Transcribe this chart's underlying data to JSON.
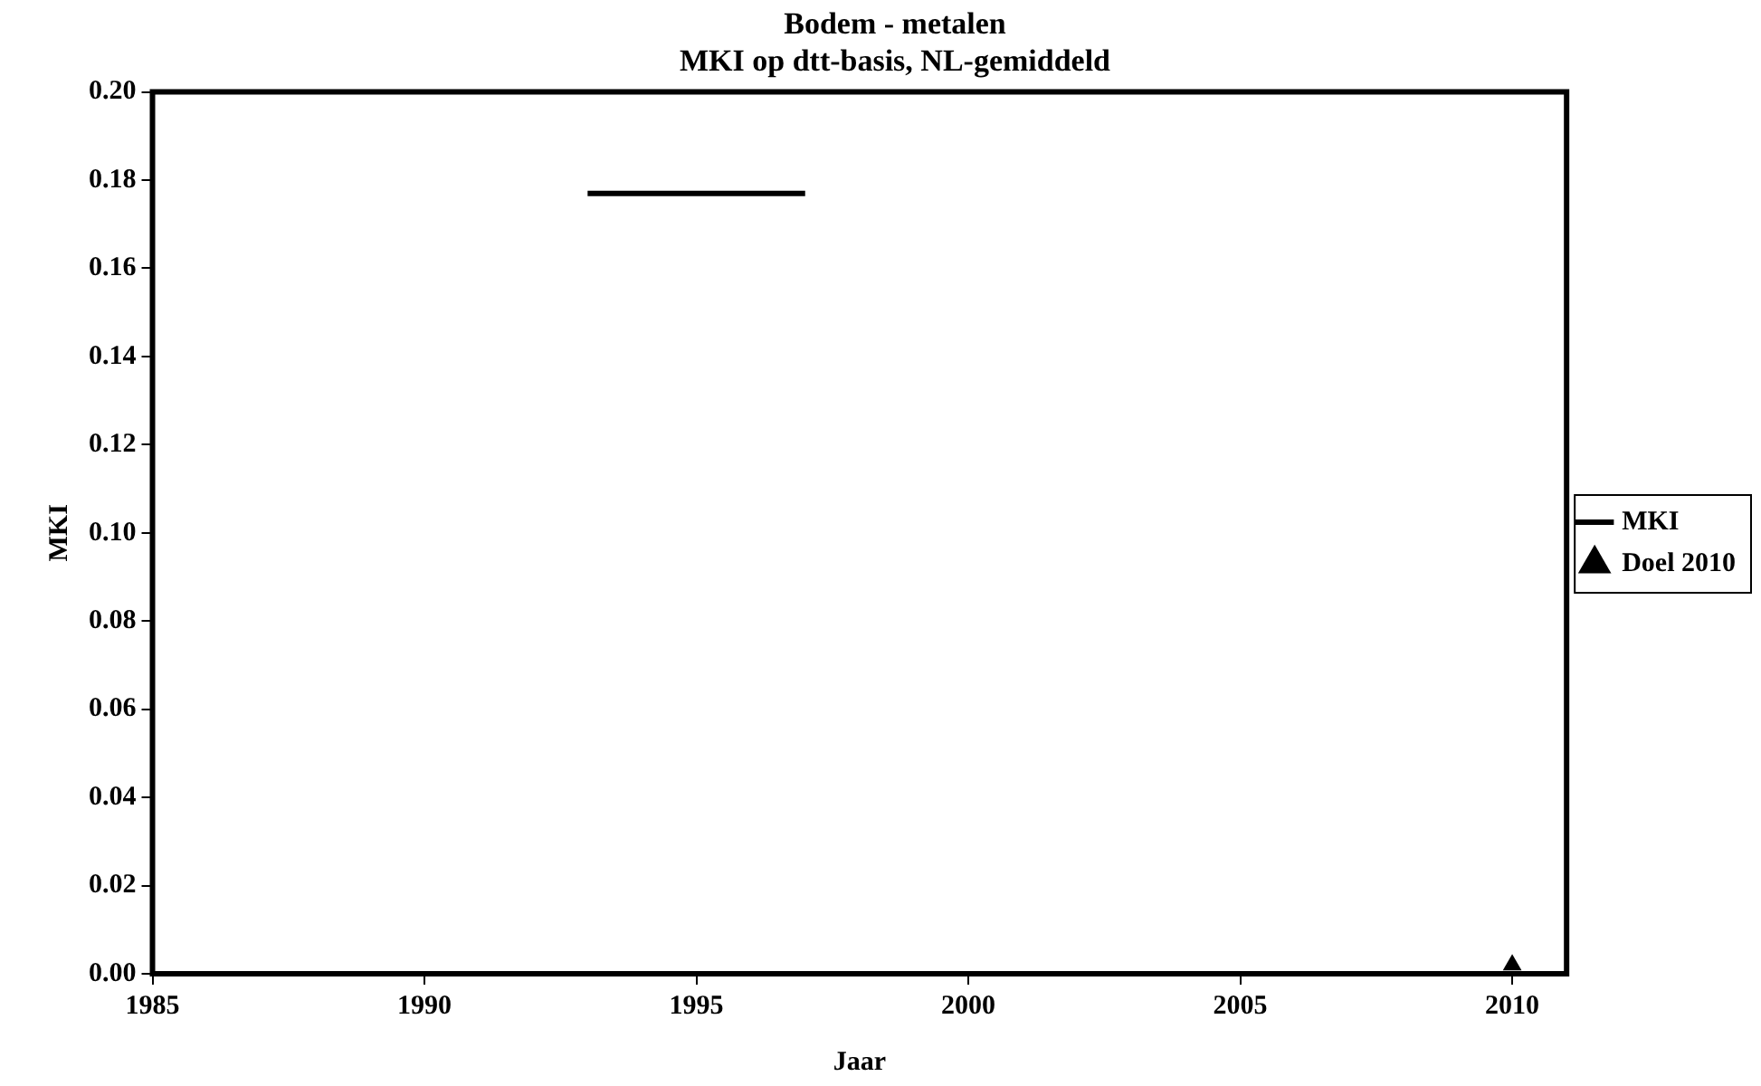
{
  "chart_data": {
    "type": "line",
    "title": "Bodem - metalen",
    "subtitle": "MKI op dtt-basis, NL-gemiddeld",
    "xlabel": "Jaar",
    "ylabel": "MKI",
    "series": [
      {
        "name": "MKI",
        "type": "line",
        "color": "#000000",
        "x": [
          1993,
          1997
        ],
        "values": [
          0.177,
          0.177
        ],
        "marker": "none",
        "line_style": "solid"
      },
      {
        "name": "Doel 2010",
        "type": "scatter",
        "color": "#000000",
        "x": [
          2010
        ],
        "values": [
          0.002
        ],
        "marker": "triangle"
      }
    ],
    "xlim": [
      1985,
      2011
    ],
    "xticks": [
      1985,
      1990,
      1995,
      2000,
      2005,
      2010
    ],
    "ylim": [
      0,
      0.2
    ],
    "yticks": [
      {
        "value": 0,
        "label": "0.00"
      },
      {
        "value": 0.02,
        "label": "0.02"
      },
      {
        "value": 0.04,
        "label": "0.04"
      },
      {
        "value": 0.06,
        "label": "0.06"
      },
      {
        "value": 0.08,
        "label": "0.08"
      },
      {
        "value": 0.1,
        "label": "0.10"
      },
      {
        "value": 0.12,
        "label": "0.12"
      },
      {
        "value": 0.14,
        "label": "0.14"
      },
      {
        "value": 0.16,
        "label": "0.16"
      },
      {
        "value": 0.18,
        "label": "0.18"
      },
      {
        "value": 0.2,
        "label": "0.20"
      }
    ],
    "grid": false,
    "legend": "right"
  }
}
